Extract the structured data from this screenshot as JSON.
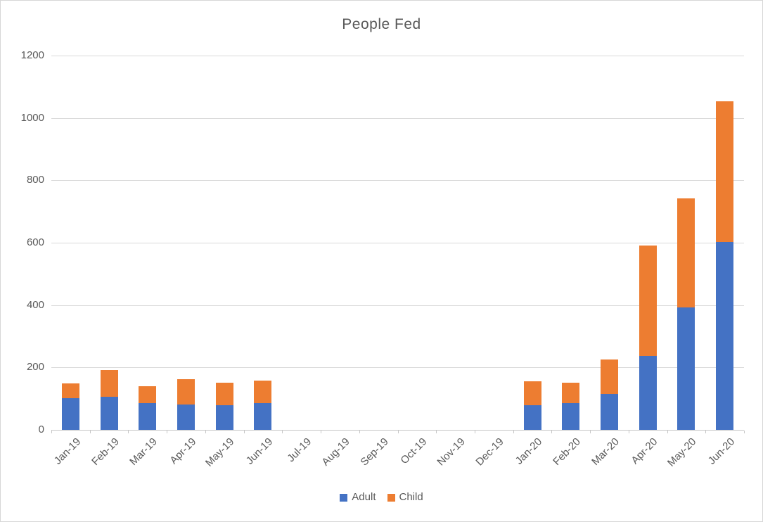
{
  "window": {
    "background": "#ffffff",
    "border_color": "#d7d7d7"
  },
  "chart_data": {
    "type": "bar",
    "stacked": true,
    "title": "People Fed",
    "categories": [
      "Jan-19",
      "Feb-19",
      "Mar-19",
      "Apr-19",
      "May-19",
      "Jun-19",
      "Jul-19",
      "Aug-19",
      "Sep-19",
      "Oct-19",
      "Nov-19",
      "Dec-19",
      "Jan-20",
      "Feb-20",
      "Mar-20",
      "Apr-20",
      "May-20",
      "Jun-20"
    ],
    "series": [
      {
        "name": "Adult",
        "color": "#4472c4",
        "values": [
          102,
          107,
          85,
          82,
          80,
          86,
          0,
          0,
          0,
          0,
          0,
          0,
          80,
          86,
          114,
          237,
          393,
          603
        ]
      },
      {
        "name": "Child",
        "color": "#ed7d31",
        "values": [
          48,
          84,
          54,
          80,
          71,
          71,
          0,
          0,
          0,
          0,
          0,
          0,
          75,
          65,
          111,
          355,
          348,
          451
        ]
      }
    ],
    "xlabel": "",
    "ylabel": "",
    "ylim": [
      0,
      1200
    ],
    "yticks": [
      0,
      200,
      400,
      600,
      800,
      1000,
      1200
    ],
    "grid": true,
    "gridline_color": "#d9d9d9",
    "axis_color": "#c6c6c6",
    "text_color": "#595959",
    "legend_position": "bottom"
  }
}
